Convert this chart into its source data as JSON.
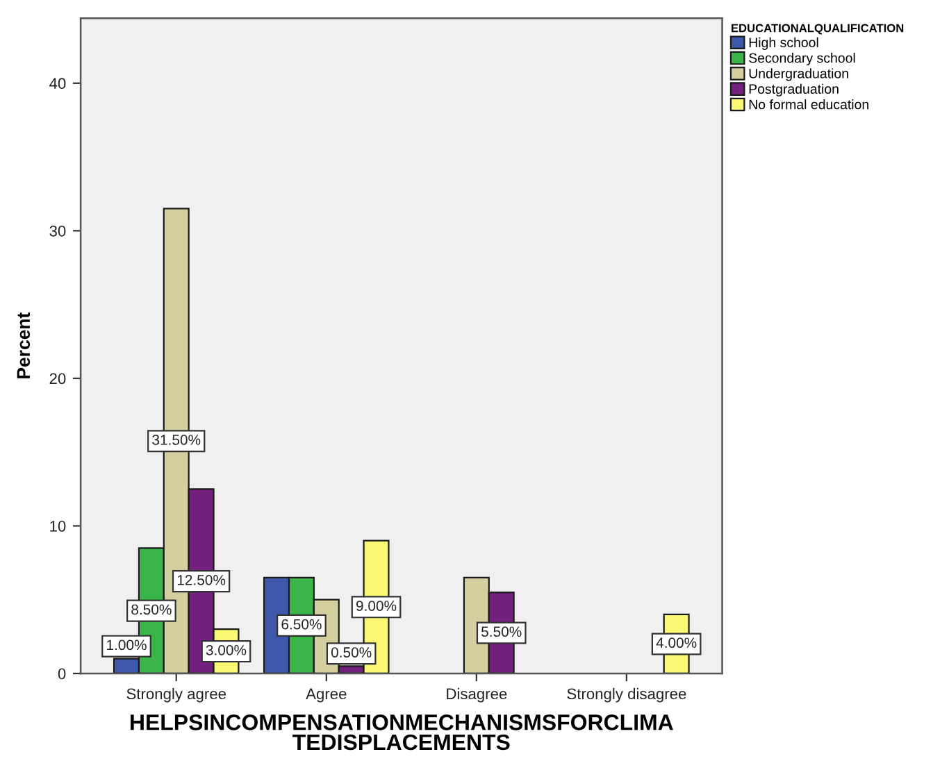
{
  "chart_data": {
    "type": "bar",
    "xlabel": "HELPSINCOMPENSATIONMECHANISMSFORCLIMA\nTEDISPLACEMENTS",
    "ylabel": "Percent",
    "legend_title": "EDUCATIONALQUALIFICATION",
    "categories": [
      "Strongly agree",
      "Agree",
      "Disagree",
      "Strongly disagree"
    ],
    "series": [
      {
        "name": "High school",
        "color": "#3e58ac",
        "values": [
          1.0,
          6.5,
          null,
          null
        ],
        "value_labels": [
          "1.00%",
          null,
          null,
          null
        ]
      },
      {
        "name": "Secondary school",
        "color": "#3bb44a",
        "values": [
          8.5,
          6.5,
          null,
          null
        ],
        "value_labels": [
          "8.50%",
          "6.50%",
          null,
          null
        ]
      },
      {
        "name": "Undergraduation",
        "color": "#d5ce9f",
        "values": [
          31.5,
          5.0,
          6.5,
          null
        ],
        "value_labels": [
          "31.50%",
          null,
          null,
          null
        ]
      },
      {
        "name": "Postgraduation",
        "color": "#74207e",
        "values": [
          12.5,
          0.5,
          5.5,
          null
        ],
        "value_labels": [
          "12.50%",
          "0.50%",
          "5.50%",
          null
        ]
      },
      {
        "name": "No formal education",
        "color": "#fbf873",
        "values": [
          3.0,
          9.0,
          null,
          4.0
        ],
        "value_labels": [
          "3.00%",
          "9.00%",
          null,
          "4.00%"
        ]
      }
    ],
    "ylim": [
      0,
      44.4
    ],
    "yticks": [
      0,
      10,
      20,
      30,
      40
    ],
    "grid": false,
    "legend": "top right"
  }
}
